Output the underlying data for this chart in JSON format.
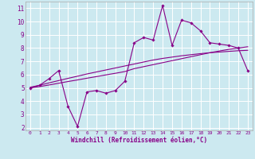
{
  "xlabel": "Windchill (Refroidissement éolien,°C)",
  "ylabel": "",
  "bg_color": "#cce9f0",
  "line_color": "#880088",
  "grid_color": "#ffffff",
  "x_values": [
    0,
    1,
    2,
    3,
    4,
    5,
    6,
    7,
    8,
    9,
    10,
    11,
    12,
    13,
    14,
    15,
    16,
    17,
    18,
    19,
    20,
    21,
    22,
    23
  ],
  "y_main": [
    5.0,
    5.2,
    5.7,
    6.3,
    3.6,
    2.1,
    4.7,
    4.8,
    4.6,
    4.8,
    5.5,
    8.4,
    8.8,
    8.6,
    11.2,
    8.2,
    10.1,
    9.9,
    9.3,
    8.4,
    8.3,
    8.2,
    8.0,
    6.3
  ],
  "y_trend1": [
    5.0,
    5.1,
    5.22,
    5.35,
    5.48,
    5.6,
    5.73,
    5.85,
    5.98,
    6.1,
    6.23,
    6.45,
    6.6,
    6.75,
    6.9,
    7.05,
    7.2,
    7.35,
    7.5,
    7.65,
    7.78,
    7.9,
    8.0,
    8.1
  ],
  "y_trend2": [
    5.05,
    5.2,
    5.38,
    5.55,
    5.72,
    5.88,
    6.05,
    6.2,
    6.35,
    6.5,
    6.65,
    6.8,
    6.95,
    7.1,
    7.22,
    7.32,
    7.42,
    7.5,
    7.58,
    7.65,
    7.7,
    7.75,
    7.8,
    7.83
  ],
  "ylim": [
    1.8,
    11.5
  ],
  "xlim": [
    -0.5,
    23.5
  ],
  "yticks": [
    2,
    3,
    4,
    5,
    6,
    7,
    8,
    9,
    10,
    11
  ],
  "xticks": [
    0,
    1,
    2,
    3,
    4,
    5,
    6,
    7,
    8,
    9,
    10,
    11,
    12,
    13,
    14,
    15,
    16,
    17,
    18,
    19,
    20,
    21,
    22,
    23
  ]
}
